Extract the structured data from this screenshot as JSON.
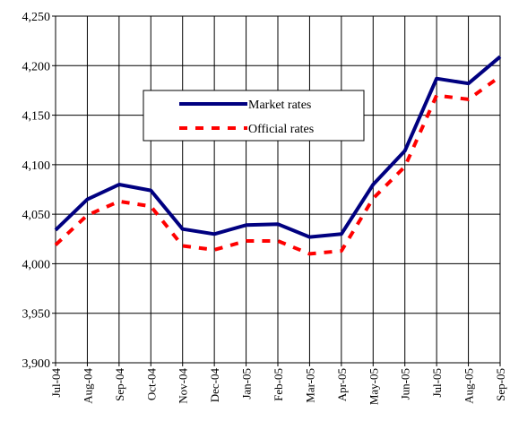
{
  "chart_data": {
    "type": "line",
    "title": "",
    "xlabel": "",
    "ylabel": "",
    "categories": [
      "Jul-04",
      "Aug-04",
      "Sep-04",
      "Oct-04",
      "Nov-04",
      "Dec-04",
      "Jan-05",
      "Feb-05",
      "Mar-05",
      "Apr-05",
      "May-05",
      "Jun-05",
      "Jul-05",
      "Aug-05",
      "Sep-05"
    ],
    "ylim": [
      3900,
      4250
    ],
    "yticks": [
      3900,
      3950,
      4000,
      4050,
      4100,
      4150,
      4200,
      4250
    ],
    "ytick_labels": [
      "3,900",
      "3,950",
      "4,000",
      "4,050",
      "4,100",
      "4,150",
      "4,200",
      "4,250"
    ],
    "grid": true,
    "legend_position": "upper-center",
    "series": [
      {
        "name": "Market rates",
        "color": "#000080",
        "style": "solid",
        "values": [
          4034,
          4065,
          4080,
          4074,
          4035,
          4030,
          4039,
          4040,
          4027,
          4030,
          4080,
          4114,
          4187,
          4182,
          4209
        ]
      },
      {
        "name": "Official rates",
        "color": "#ff0000",
        "style": "dashed",
        "values": [
          4019,
          4049,
          4063,
          4058,
          4018,
          4014,
          4023,
          4023,
          4010,
          4013,
          4066,
          4098,
          4170,
          4166,
          4189
        ]
      }
    ]
  }
}
